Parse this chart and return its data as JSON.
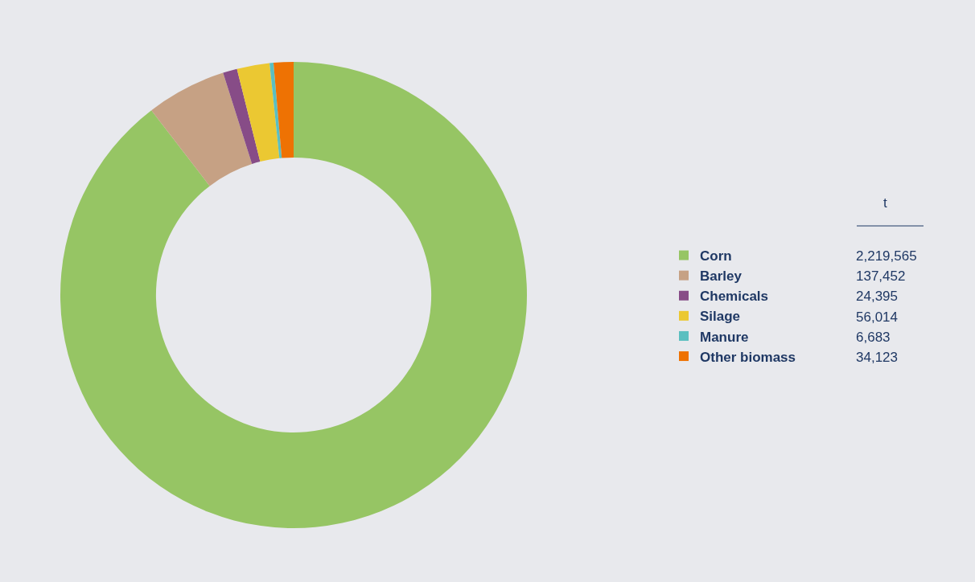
{
  "chart_data": {
    "type": "donut",
    "legend_title": "t",
    "legend": "right",
    "categories": [
      "Corn",
      "Barley",
      "Chemicals",
      "Silage",
      "Manure",
      "Other biomass"
    ],
    "values": [
      2219565,
      137452,
      24395,
      56014,
      6683,
      34123
    ],
    "value_labels": [
      "2,219,565",
      "137,452",
      "24,395",
      "56,014",
      "6,683",
      "34,123"
    ],
    "colors": [
      "#96c564",
      "#c6a184",
      "#874c87",
      "#ebc832",
      "#5bbfc0",
      "#ee7203"
    ]
  }
}
